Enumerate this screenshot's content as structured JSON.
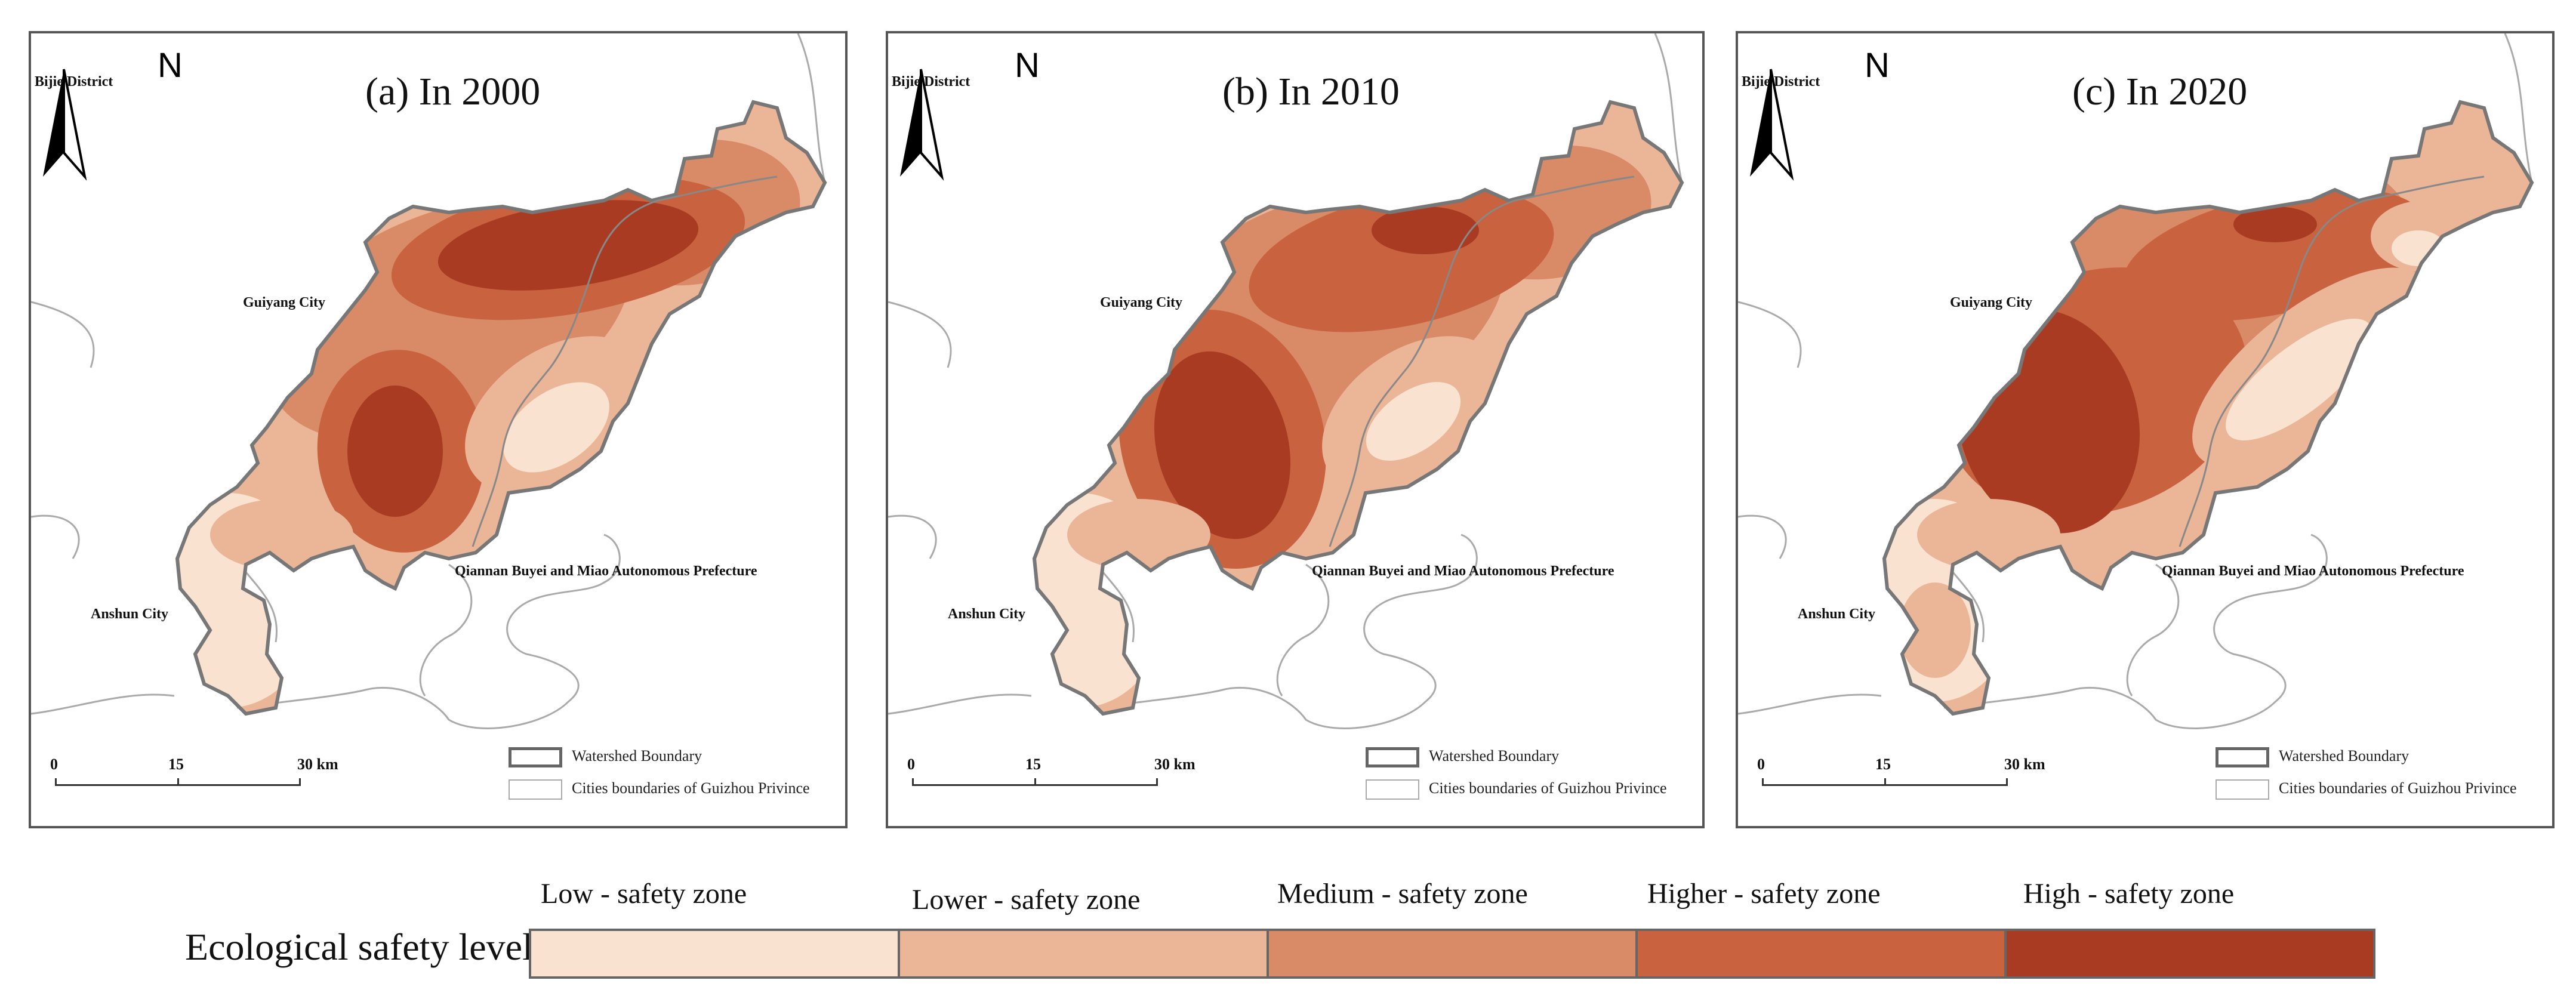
{
  "panels": [
    {
      "title": "(a) In 2000",
      "scale_ticks": [
        "0",
        "15",
        "30 km"
      ]
    },
    {
      "title": "(b) In 2010",
      "scale_ticks": [
        "0",
        "15",
        "30 km"
      ]
    },
    {
      "title": "(c) In 2020",
      "scale_ticks": [
        "0",
        "15",
        "30 km"
      ]
    }
  ],
  "map_labels": {
    "bijie": "Bijie District",
    "guiyang": "Guiyang City",
    "qiannan": "Qiannan Buyei and Miao Autonomous Prefecture",
    "anshun": "Anshun City",
    "north": "N"
  },
  "map_legend": {
    "watershed": "Watershed Boundary",
    "cities": "Cities boundaries of Guizhou Privince"
  },
  "level_legend": {
    "title": "Ecological safety level",
    "levels": [
      {
        "label": "Low - safety zone",
        "color": "#f9e2cf"
      },
      {
        "label": "Lower - safety zone",
        "color": "#ebb597"
      },
      {
        "label": "Medium - safety zone",
        "color": "#d98a67"
      },
      {
        "label": "Higher - safety zone",
        "color": "#c8623f"
      },
      {
        "label": "High - safety zone",
        "color": "#aa3b23"
      }
    ]
  },
  "colors": {
    "boundary": "#777777",
    "city_line": "#aaaaaa"
  }
}
